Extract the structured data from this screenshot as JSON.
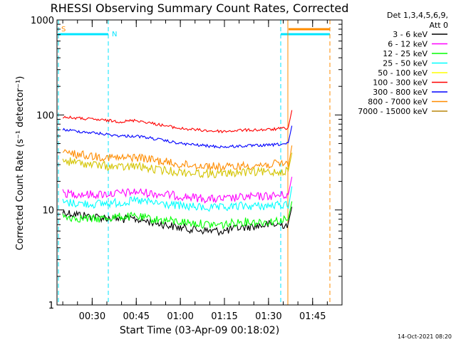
{
  "chart_data": {
    "type": "line",
    "title": "RHESSI Observing Summary Count Rates, Corrected",
    "xlabel": "Start Time (03-Apr-09 00:18:02)",
    "ylabel": "Corrected Count Rate (s⁻¹ detector⁻¹)",
    "yscale": "log",
    "ylim": [
      1,
      1000
    ],
    "xlim": [
      "00:18:02",
      "01:55:00"
    ],
    "x_ticks": [
      "00:30",
      "00:45",
      "01:00",
      "01:15",
      "01:30",
      "01:45"
    ],
    "y_ticks": [
      "1",
      "10",
      "100",
      "1000"
    ],
    "legend_title": [
      "Det 1,3,4,5,6,9,",
      "Att 0"
    ],
    "legend_position": "right",
    "timestamp": "14-Oct-2021 08:20",
    "flags": [
      {
        "label": "S",
        "color": "#ff8c00"
      },
      {
        "label": "N",
        "color": "#00e5ff"
      }
    ],
    "x_times": [
      "00:20",
      "00:30",
      "00:40",
      "00:45",
      "00:50",
      "01:00",
      "01:10",
      "01:15",
      "01:20",
      "01:30",
      "01:37"
    ],
    "series": [
      {
        "name": "3 - 6 keV",
        "color": "#000000",
        "values": [
          9.5,
          8.5,
          8.0,
          8.0,
          7.5,
          6.5,
          6.0,
          6.0,
          6.5,
          7.0,
          7.0
        ]
      },
      {
        "name": "6 - 12 keV",
        "color": "#ff00ff",
        "values": [
          15,
          14.5,
          15,
          15.5,
          15,
          14,
          13,
          13,
          13.5,
          14,
          14.5
        ]
      },
      {
        "name": "12 - 25 keV",
        "color": "#00ff00",
        "values": [
          8.5,
          8.0,
          8.5,
          8.5,
          8.0,
          7.5,
          7.0,
          7.0,
          7.5,
          7.5,
          8.0
        ]
      },
      {
        "name": "25 - 50 keV",
        "color": "#00ffff",
        "values": [
          12,
          11.5,
          12,
          12.5,
          12,
          11,
          10.5,
          10.5,
          11,
          11,
          11.5
        ]
      },
      {
        "name": "50 - 100 keV",
        "color": "#ffff00",
        "values": []
      },
      {
        "name": "100 - 300 keV",
        "color": "#ff0000",
        "values": [
          95,
          90,
          85,
          88,
          82,
          72,
          68,
          67,
          69,
          70,
          73
        ]
      },
      {
        "name": "300 - 800 keV",
        "color": "#0000ff",
        "values": [
          70,
          65,
          60,
          60,
          57,
          50,
          47,
          46,
          47,
          48,
          50
        ]
      },
      {
        "name": "800 - 7000 keV",
        "color": "#ff8c00",
        "values": [
          40,
          37,
          35,
          36,
          34,
          30,
          29,
          28,
          29,
          30,
          31
        ]
      },
      {
        "name": "7000 - 15000 keV",
        "color": "#b8860b",
        "values": []
      },
      {
        "name": "",
        "color": "#d4c400",
        "values": [
          33,
          30,
          28,
          29,
          27,
          25,
          24,
          24,
          25,
          25,
          26
        ]
      }
    ]
  }
}
